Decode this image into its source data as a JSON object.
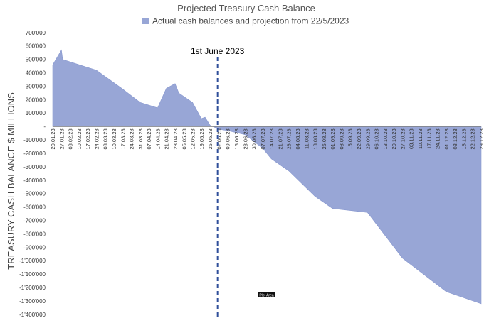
{
  "chart_data": {
    "type": "area",
    "title": "Projected Treasury Cash Balance",
    "ylabel": "TREASURY CASH BALANCE $ MILLIONS",
    "xlabel": "",
    "legend": {
      "position": "top",
      "entries": [
        "Actual cash balances and projection from 22/5/2023"
      ]
    },
    "ylim": [
      -1400000,
      700000
    ],
    "yticks": [
      700000,
      600000,
      500000,
      400000,
      300000,
      200000,
      100000,
      0,
      -100000,
      -200000,
      -300000,
      -400000,
      -500000,
      -600000,
      -700000,
      -800000,
      -900000,
      -1000000,
      -1100000,
      -1200000,
      -1300000,
      -1400000
    ],
    "ytick_labels": [
      "700'000",
      "600'000",
      "500'000",
      "400'000",
      "300'000",
      "200'000",
      "100'000",
      "-",
      "-100'000",
      "-200'000",
      "-300'000",
      "-400'000",
      "-500'000",
      "-600'000",
      "-700'000",
      "-800'000",
      "-900'000",
      "-1'000'000",
      "-1'100'000",
      "-1'200'000",
      "-1'300'000",
      "-1'400'000"
    ],
    "xticks": [
      "20.01.23",
      "27.01.23",
      "03.02.23",
      "10.02.23",
      "17.02.23",
      "24.02.23",
      "03.03.23",
      "10.03.23",
      "17.03.23",
      "24.03.23",
      "31.03.23",
      "07.04.23",
      "14.04.23",
      "21.04.23",
      "28.04.23",
      "05.05.23",
      "12.05.23",
      "19.05.23",
      "26.05.23",
      "02.06.23",
      "09.06.23",
      "16.06.23",
      "23.06.23",
      "30.06.23",
      "07.07.23",
      "14.07.23",
      "21.07.23",
      "28.07.23",
      "04.08.23",
      "11.08.23",
      "18.08.23",
      "25.08.23",
      "01.09.23",
      "08.09.23",
      "15.09.23",
      "22.09.23",
      "29.09.23",
      "06.10.23",
      "13.10.23",
      "20.10.23",
      "27.10.23",
      "03.11.23",
      "10.11.23",
      "17.11.23",
      "24.11.23",
      "01.12.23",
      "08.12.23",
      "15.12.23",
      "22.12.23",
      "29.12.23"
    ],
    "series": [
      {
        "name": "Actual cash balances and projection from 22/5/2023",
        "color": "#98a6d6",
        "points": [
          [
            "20.01.23",
            460000
          ],
          [
            "27.01.23",
            570000
          ],
          [
            "28.01.23",
            500000
          ],
          [
            "24.02.23",
            420000
          ],
          [
            "17.03.23",
            280000
          ],
          [
            "31.03.23",
            180000
          ],
          [
            "14.04.23",
            140000
          ],
          [
            "21.04.23",
            285000
          ],
          [
            "28.04.23",
            320000
          ],
          [
            "01.05.23",
            250000
          ],
          [
            "12.05.23",
            180000
          ],
          [
            "19.05.23",
            60000
          ],
          [
            "22.05.23",
            70000
          ],
          [
            "26.05.23",
            10000
          ],
          [
            "02.06.23",
            -20000
          ],
          [
            "09.06.23",
            -30000
          ],
          [
            "23.06.23",
            -60000
          ],
          [
            "07.07.23",
            -160000
          ],
          [
            "14.07.23",
            -240000
          ],
          [
            "28.07.23",
            -330000
          ],
          [
            "18.08.23",
            -520000
          ],
          [
            "01.09.23",
            -610000
          ],
          [
            "29.09.23",
            -640000
          ],
          [
            "27.10.23",
            -980000
          ],
          [
            "01.12.23",
            -1230000
          ],
          [
            "29.12.23",
            -1320000
          ]
        ]
      }
    ],
    "annotations": [
      {
        "text": "1st June 2023",
        "x": "01.06.23",
        "style": "dashed vertical line"
      }
    ],
    "tooltip": "Plot Area",
    "grid": false
  }
}
